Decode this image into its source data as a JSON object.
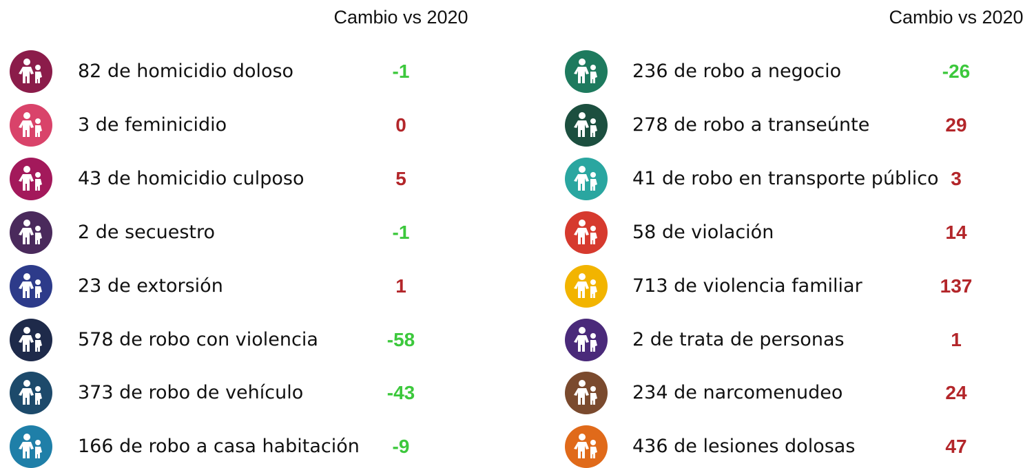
{
  "columns": [
    {
      "header": "Cambio vs 2020",
      "rows": [
        {
          "count": 82,
          "label": "de homicidio doloso",
          "change": -1,
          "icon_color": "#8b1c4a"
        },
        {
          "count": 3,
          "label": "de feminicidio",
          "change": 0,
          "icon_color": "#d9436a"
        },
        {
          "count": 43,
          "label": "de homicidio culposo",
          "change": 5,
          "icon_color": "#a3195b"
        },
        {
          "count": 2,
          "label": "de secuestro",
          "change": -1,
          "icon_color": "#4a2a5c"
        },
        {
          "count": 23,
          "label": "de extorsión",
          "change": 1,
          "icon_color": "#2d3b8a"
        },
        {
          "count": 578,
          "label": "de robo con violencia",
          "change": -58,
          "icon_color": "#1e2a4a"
        },
        {
          "count": 373,
          "label": "de robo de vehículo",
          "change": -43,
          "icon_color": "#1d4a6b"
        },
        {
          "count": 166,
          "label": "de robo a casa habitación",
          "change": -9,
          "icon_color": "#1f7fa8"
        }
      ]
    },
    {
      "header": "Cambio vs 2020",
      "rows": [
        {
          "count": 236,
          "label": "de robo a negocio",
          "change": -26,
          "icon_color": "#1e7a5e"
        },
        {
          "count": 278,
          "label": "de robo a transeúnte",
          "change": 29,
          "icon_color": "#1c4f3f"
        },
        {
          "count": 41,
          "label": "de robo en transporte público",
          "change": 3,
          "icon_color": "#2aa6a0"
        },
        {
          "count": 58,
          "label": "de violación",
          "change": 14,
          "icon_color": "#d63a2e"
        },
        {
          "count": 713,
          "label": "de violencia familiar",
          "change": 137,
          "icon_color": "#f2b400"
        },
        {
          "count": 2,
          "label": "de trata de personas",
          "change": 1,
          "icon_color": "#4a2a7a"
        },
        {
          "count": 234,
          "label": "de narcomenudeo",
          "change": 24,
          "icon_color": "#7a4a2e"
        },
        {
          "count": 436,
          "label": "de lesiones dolosas",
          "change": 47,
          "icon_color": "#e06a1a"
        }
      ]
    }
  ]
}
